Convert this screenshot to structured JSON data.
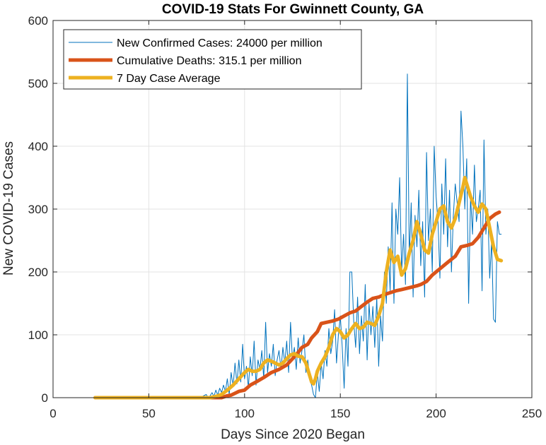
{
  "chart_data": {
    "type": "line",
    "title": "COVID-19 Stats For Gwinnett County, GA",
    "xlabel": "Days Since 2020 Began",
    "ylabel": "New COVID-19 Cases",
    "xlim": [
      0,
      250
    ],
    "ylim": [
      0,
      600
    ],
    "xticks": [
      0,
      50,
      100,
      150,
      200,
      250
    ],
    "yticks": [
      0,
      100,
      200,
      300,
      400,
      500,
      600
    ],
    "grid": true,
    "legend_position": "top-left",
    "series": [
      {
        "name": "New Confirmed Cases: 24000 per million",
        "color": "#0072BD",
        "linewidth": 1,
        "points": [
          [
            22,
            0
          ],
          [
            40,
            0
          ],
          [
            60,
            0
          ],
          [
            70,
            0
          ],
          [
            75,
            0
          ],
          [
            78,
            2
          ],
          [
            80,
            5
          ],
          [
            81,
            0
          ],
          [
            82,
            3
          ],
          [
            83,
            8
          ],
          [
            84,
            2
          ],
          [
            85,
            12
          ],
          [
            86,
            4
          ],
          [
            87,
            15
          ],
          [
            88,
            8
          ],
          [
            89,
            20
          ],
          [
            90,
            10
          ],
          [
            91,
            30
          ],
          [
            92,
            5
          ],
          [
            93,
            40
          ],
          [
            94,
            18
          ],
          [
            95,
            55
          ],
          [
            96,
            22
          ],
          [
            97,
            60
          ],
          [
            98,
            25
          ],
          [
            99,
            85
          ],
          [
            100,
            30
          ],
          [
            101,
            50
          ],
          [
            102,
            15
          ],
          [
            103,
            65
          ],
          [
            104,
            35
          ],
          [
            105,
            90
          ],
          [
            106,
            20
          ],
          [
            107,
            60
          ],
          [
            108,
            45
          ],
          [
            109,
            75
          ],
          [
            110,
            30
          ],
          [
            111,
            120
          ],
          [
            112,
            40
          ],
          [
            113,
            70
          ],
          [
            114,
            50
          ],
          [
            115,
            85
          ],
          [
            116,
            35
          ],
          [
            117,
            60
          ],
          [
            118,
            75
          ],
          [
            119,
            45
          ],
          [
            120,
            80
          ],
          [
            121,
            55
          ],
          [
            122,
            90
          ],
          [
            123,
            40
          ],
          [
            124,
            120
          ],
          [
            125,
            60
          ],
          [
            126,
            80
          ],
          [
            127,
            45
          ],
          [
            128,
            95
          ],
          [
            129,
            55
          ],
          [
            130,
            75
          ],
          [
            131,
            100
          ],
          [
            132,
            40
          ],
          [
            133,
            60
          ],
          [
            134,
            30
          ],
          [
            135,
            20
          ],
          [
            136,
            5
          ],
          [
            137,
            0
          ],
          [
            138,
            40
          ],
          [
            139,
            10
          ],
          [
            140,
            55
          ],
          [
            141,
            30
          ],
          [
            142,
            75
          ],
          [
            143,
            50
          ],
          [
            144,
            110
          ],
          [
            145,
            70
          ],
          [
            146,
            90
          ],
          [
            147,
            140
          ],
          [
            148,
            55
          ],
          [
            149,
            100
          ],
          [
            150,
            130
          ],
          [
            151,
            80
          ],
          [
            152,
            15
          ],
          [
            153,
            110
          ],
          [
            154,
            50
          ],
          [
            155,
            200
          ],
          [
            156,
            200
          ],
          [
            157,
            120
          ],
          [
            158,
            80
          ],
          [
            159,
            160
          ],
          [
            160,
            70
          ],
          [
            161,
            130
          ],
          [
            162,
            90
          ],
          [
            163,
            180
          ],
          [
            164,
            60
          ],
          [
            165,
            150
          ],
          [
            166,
            100
          ],
          [
            167,
            145
          ],
          [
            168,
            80
          ],
          [
            169,
            160
          ],
          [
            170,
            50
          ],
          [
            171,
            130
          ],
          [
            172,
            90
          ],
          [
            173,
            200
          ],
          [
            174,
            150
          ],
          [
            175,
            240
          ],
          [
            176,
            170
          ],
          [
            177,
            310
          ],
          [
            178,
            150
          ],
          [
            179,
            300
          ],
          [
            180,
            260
          ],
          [
            181,
            350
          ],
          [
            182,
            200
          ],
          [
            183,
            260
          ],
          [
            184,
            180
          ],
          [
            185,
            515
          ],
          [
            186,
            220
          ],
          [
            187,
            310
          ],
          [
            188,
            160
          ],
          [
            189,
            290
          ],
          [
            190,
            240
          ],
          [
            191,
            330
          ],
          [
            192,
            210
          ],
          [
            193,
            280
          ],
          [
            194,
            160
          ],
          [
            195,
            390
          ],
          [
            196,
            250
          ],
          [
            197,
            300
          ],
          [
            198,
            200
          ],
          [
            199,
            400
          ],
          [
            200,
            320
          ],
          [
            201,
            280
          ],
          [
            202,
            190
          ],
          [
            203,
            340
          ],
          [
            204,
            260
          ],
          [
            205,
            380
          ],
          [
            206,
            240
          ],
          [
            207,
            330
          ],
          [
            208,
            200
          ],
          [
            209,
            290
          ],
          [
            210,
            340
          ],
          [
            211,
            310
          ],
          [
            212,
            280
          ],
          [
            213,
            456
          ],
          [
            214,
            400
          ],
          [
            215,
            300
          ],
          [
            216,
            380
          ],
          [
            217,
            150
          ],
          [
            218,
            320
          ],
          [
            219,
            260
          ],
          [
            220,
            370
          ],
          [
            221,
            280
          ],
          [
            222,
            300
          ],
          [
            223,
            330
          ],
          [
            224,
            170
          ],
          [
            225,
            410
          ],
          [
            226,
            260
          ],
          [
            227,
            300
          ],
          [
            228,
            190
          ],
          [
            229,
            250
          ],
          [
            230,
            125
          ],
          [
            231,
            120
          ],
          [
            232,
            280
          ],
          [
            233,
            260
          ],
          [
            234,
            260
          ]
        ]
      },
      {
        "name": "Cumulative Deaths: 315.1 per million",
        "color": "#D95319",
        "linewidth": 5,
        "points": [
          [
            22,
            0
          ],
          [
            80,
            0
          ],
          [
            88,
            0
          ],
          [
            91,
            3
          ],
          [
            93,
            4
          ],
          [
            95,
            7
          ],
          [
            97,
            10
          ],
          [
            100,
            12
          ],
          [
            103,
            20
          ],
          [
            106,
            25
          ],
          [
            110,
            32
          ],
          [
            114,
            40
          ],
          [
            118,
            45
          ],
          [
            122,
            52
          ],
          [
            126,
            65
          ],
          [
            128,
            72
          ],
          [
            130,
            80
          ],
          [
            133,
            85
          ],
          [
            135,
            95
          ],
          [
            138,
            105
          ],
          [
            140,
            118
          ],
          [
            143,
            120
          ],
          [
            146,
            122
          ],
          [
            149,
            125
          ],
          [
            152,
            130
          ],
          [
            155,
            135
          ],
          [
            158,
            138
          ],
          [
            161,
            145
          ],
          [
            164,
            152
          ],
          [
            167,
            158
          ],
          [
            170,
            160
          ],
          [
            173,
            164
          ],
          [
            176,
            167
          ],
          [
            179,
            170
          ],
          [
            182,
            172
          ],
          [
            186,
            175
          ],
          [
            190,
            178
          ],
          [
            192,
            180
          ],
          [
            195,
            185
          ],
          [
            198,
            195
          ],
          [
            202,
            205
          ],
          [
            206,
            215
          ],
          [
            210,
            225
          ],
          [
            213,
            240
          ],
          [
            216,
            242
          ],
          [
            219,
            245
          ],
          [
            222,
            255
          ],
          [
            225,
            270
          ],
          [
            228,
            285
          ],
          [
            231,
            292
          ],
          [
            233,
            295
          ]
        ]
      },
      {
        "name": "7 Day Case Average",
        "color": "#EDB120",
        "linewidth": 5,
        "points": [
          [
            22,
            0
          ],
          [
            78,
            0
          ],
          [
            82,
            0
          ],
          [
            85,
            2
          ],
          [
            88,
            5
          ],
          [
            91,
            12
          ],
          [
            94,
            20
          ],
          [
            97,
            30
          ],
          [
            100,
            40
          ],
          [
            102,
            45
          ],
          [
            104,
            42
          ],
          [
            106,
            42
          ],
          [
            108,
            45
          ],
          [
            110,
            55
          ],
          [
            112,
            60
          ],
          [
            114,
            58
          ],
          [
            116,
            55
          ],
          [
            118,
            52
          ],
          [
            120,
            55
          ],
          [
            122,
            62
          ],
          [
            124,
            68
          ],
          [
            126,
            70
          ],
          [
            128,
            66
          ],
          [
            130,
            65
          ],
          [
            132,
            55
          ],
          [
            134,
            35
          ],
          [
            135,
            25
          ],
          [
            136,
            22
          ],
          [
            137,
            30
          ],
          [
            138,
            42
          ],
          [
            140,
            55
          ],
          [
            142,
            65
          ],
          [
            144,
            80
          ],
          [
            146,
            100
          ],
          [
            148,
            110
          ],
          [
            150,
            105
          ],
          [
            152,
            95
          ],
          [
            154,
            100
          ],
          [
            156,
            110
          ],
          [
            158,
            118
          ],
          [
            160,
            110
          ],
          [
            162,
            112
          ],
          [
            164,
            120
          ],
          [
            166,
            118
          ],
          [
            168,
            115
          ],
          [
            170,
            130
          ],
          [
            172,
            150
          ],
          [
            174,
            200
          ],
          [
            176,
            235
          ],
          [
            178,
            215
          ],
          [
            180,
            225
          ],
          [
            182,
            195
          ],
          [
            184,
            205
          ],
          [
            186,
            230
          ],
          [
            188,
            250
          ],
          [
            190,
            280
          ],
          [
            192,
            260
          ],
          [
            194,
            235
          ],
          [
            196,
            230
          ],
          [
            198,
            260
          ],
          [
            200,
            280
          ],
          [
            202,
            300
          ],
          [
            204,
            305
          ],
          [
            206,
            280
          ],
          [
            208,
            270
          ],
          [
            210,
            285
          ],
          [
            212,
            310
          ],
          [
            214,
            335
          ],
          [
            215,
            350
          ],
          [
            216,
            340
          ],
          [
            218,
            320
          ],
          [
            220,
            305
          ],
          [
            222,
            295
          ],
          [
            224,
            308
          ],
          [
            226,
            300
          ],
          [
            228,
            270
          ],
          [
            230,
            240
          ],
          [
            232,
            220
          ],
          [
            234,
            218
          ]
        ]
      }
    ]
  }
}
